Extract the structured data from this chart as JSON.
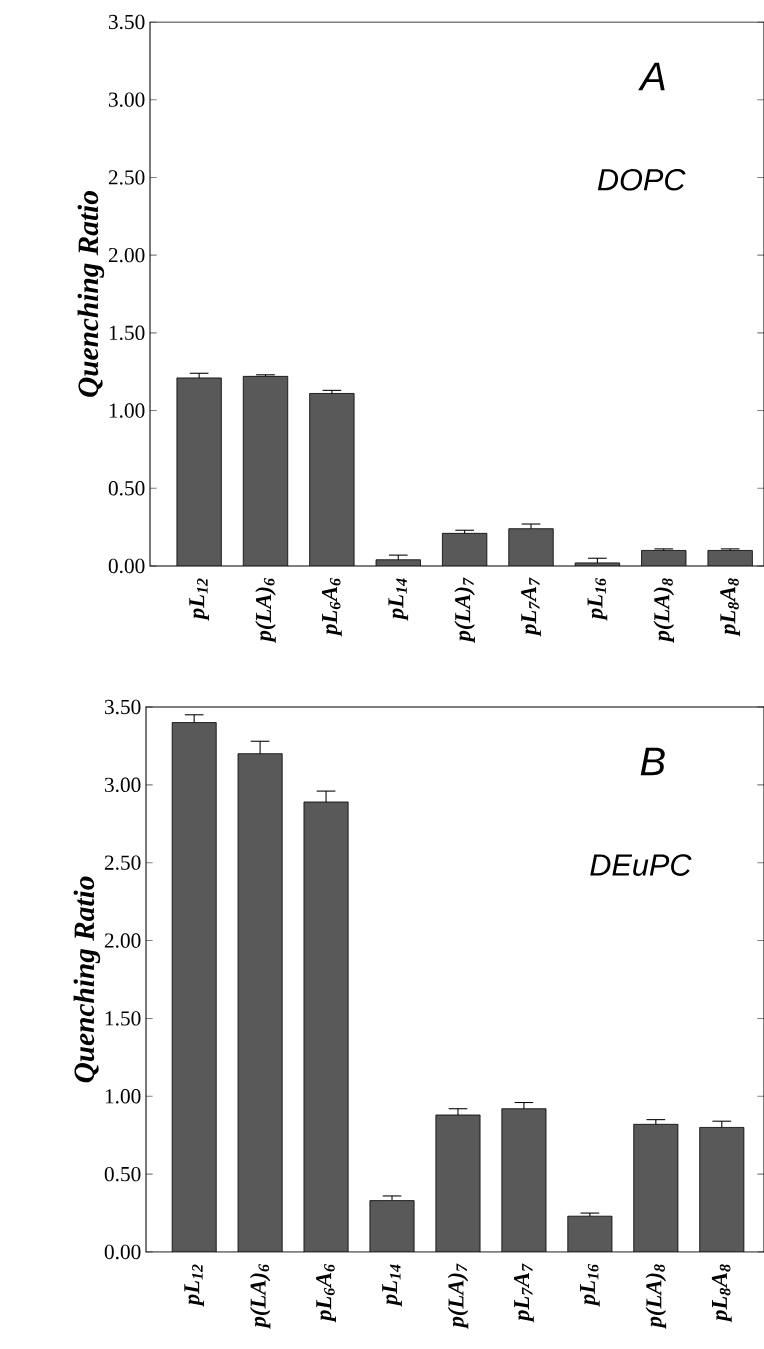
{
  "chart_data": [
    {
      "type": "bar",
      "ylabel": "Quenching Ratio",
      "annotations": [
        "A",
        "DOPC"
      ],
      "categories": [
        "pL$_{12}$",
        "p(LA)$_{6}$",
        "pL$_{6}$A$_{6}$",
        "pL$_{14}$",
        "p(LA)$_{7}$",
        "pL$_{7}$A$_{7}$",
        "pL$_{16}$",
        "p(LA)$_{8}$",
        "pL$_{8}$A$_{8}$"
      ],
      "values": [
        1.21,
        1.22,
        1.11,
        0.04,
        0.21,
        0.24,
        0.02,
        0.1,
        0.1
      ],
      "errors": [
        0.03,
        0.01,
        0.02,
        0.03,
        0.02,
        0.03,
        0.03,
        0.01,
        0.01
      ],
      "color": "#595959",
      "ylim": [
        0,
        3.5
      ],
      "yticks": [
        {
          "value": 0,
          "label": "0.00"
        },
        {
          "value": 0.5,
          "label": "0.50"
        },
        {
          "value": 1,
          "label": "1.00"
        },
        {
          "value": 1.5,
          "label": "1.50"
        },
        {
          "value": 2,
          "label": "2.00"
        },
        {
          "value": 2.5,
          "label": "2.50"
        },
        {
          "value": 3,
          "label": "3.00"
        },
        {
          "value": 3.5,
          "label": "3.50"
        }
      ]
    },
    {
      "type": "bar",
      "ylabel": "Quenching Ratio",
      "annotations": [
        "B",
        "DEuPC"
      ],
      "categories": [
        "pL$_{12}$",
        "p(LA)$_{6}$",
        "pL$_{6}$A$_{6}$",
        "pL$_{14}$",
        "p(LA)$_{7}$",
        "pL$_{7}$A$_{7}$",
        "pL$_{16}$",
        "p(LA)$_{8}$",
        "pL$_{8}$A$_{8}$"
      ],
      "values": [
        3.4,
        3.2,
        2.89,
        0.33,
        0.88,
        0.92,
        0.23,
        0.82,
        0.8
      ],
      "errors": [
        0.05,
        0.08,
        0.07,
        0.03,
        0.04,
        0.04,
        0.02,
        0.03,
        0.04
      ],
      "color": "#595959",
      "ylim": [
        0,
        3.5
      ],
      "yticks": [
        {
          "value": 0,
          "label": "0.00"
        },
        {
          "value": 0.5,
          "label": "0.50"
        },
        {
          "value": 1,
          "label": "1.00"
        },
        {
          "value": 1.5,
          "label": "1.50"
        },
        {
          "value": 2,
          "label": "2.00"
        },
        {
          "value": 2.5,
          "label": "2.50"
        },
        {
          "value": 3,
          "label": "3.00"
        },
        {
          "value": 3.5,
          "label": "3.50"
        }
      ]
    }
  ]
}
